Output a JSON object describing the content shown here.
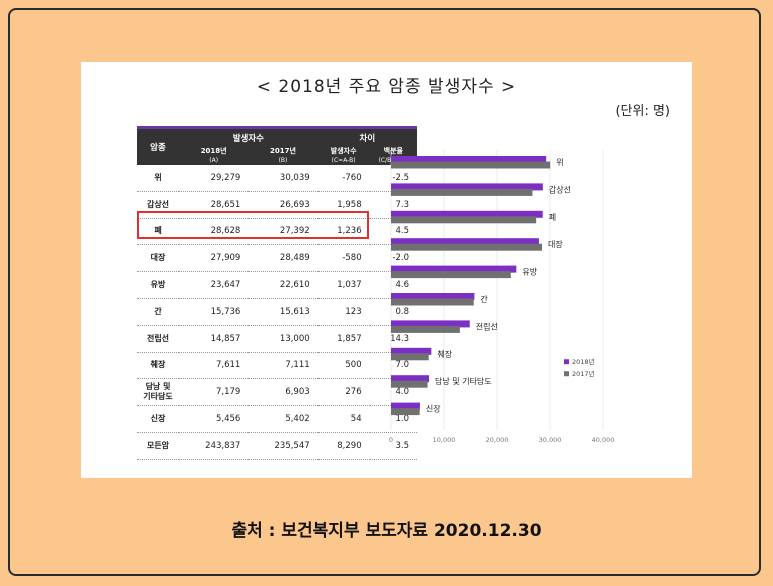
{
  "title": "< 2018년 주요 암종 발생자수 >",
  "unit": "(단위: 명)",
  "caption": "출처 : 보건복지부 보도자료 2020.12.30",
  "table": {
    "headers": {
      "cancer": "암종",
      "incidence": "발생자수",
      "difference": "차이",
      "y2018": "2018년",
      "y2018_sub": "(A)",
      "y2017": "2017년",
      "y2017_sub": "(B)",
      "diff": "발생자수",
      "diff_sub": "(C=A-B)",
      "pct": "백분율",
      "pct_sub": "(C/B*100)"
    },
    "rows": [
      {
        "name": "위",
        "a": "29,279",
        "b": "30,039",
        "c": "-760",
        "p": "-2.5"
      },
      {
        "name": "갑상선",
        "a": "28,651",
        "b": "26,693",
        "c": "1,958",
        "p": "7.3"
      },
      {
        "name": "폐",
        "a": "28,628",
        "b": "27,392",
        "c": "1,236",
        "p": "4.5"
      },
      {
        "name": "대장",
        "a": "27,909",
        "b": "28,489",
        "c": "-580",
        "p": "-2.0"
      },
      {
        "name": "유방",
        "a": "23,647",
        "b": "22,610",
        "c": "1,037",
        "p": "4.6"
      },
      {
        "name": "간",
        "a": "15,736",
        "b": "15,613",
        "c": "123",
        "p": "0.8"
      },
      {
        "name": "전립선",
        "a": "14,857",
        "b": "13,000",
        "c": "1,857",
        "p": "14.3"
      },
      {
        "name": "췌장",
        "a": "7,611",
        "b": "7,111",
        "c": "500",
        "p": "7.0"
      },
      {
        "name": "담낭 및\n기타담도",
        "a": "7,179",
        "b": "6,903",
        "c": "276",
        "p": "4.0"
      },
      {
        "name": "신장",
        "a": "5,456",
        "b": "5,402",
        "c": "54",
        "p": "1.0"
      },
      {
        "name": "모든암",
        "a": "243,837",
        "b": "235,547",
        "c": "8,290",
        "p": "3.5"
      }
    ]
  },
  "chart_data": {
    "type": "bar",
    "orientation": "horizontal",
    "categories": [
      "위",
      "갑상선",
      "폐",
      "대장",
      "유방",
      "간",
      "전립선",
      "췌장",
      "담낭 및 기타담도",
      "신장"
    ],
    "series": [
      {
        "name": "2018년",
        "color": "#7b2fc4",
        "values": [
          29279,
          28651,
          28628,
          27909,
          23647,
          15736,
          14857,
          7611,
          7179,
          5456
        ]
      },
      {
        "name": "2017년",
        "color": "#707070",
        "values": [
          30039,
          26693,
          27392,
          28489,
          22610,
          15613,
          13000,
          7111,
          6903,
          5402
        ]
      }
    ],
    "xlim": [
      0,
      40000
    ],
    "xticks": [
      "0",
      "10,000",
      "20,000",
      "30,000",
      "40,000"
    ],
    "legend_position": "bottom-right"
  }
}
